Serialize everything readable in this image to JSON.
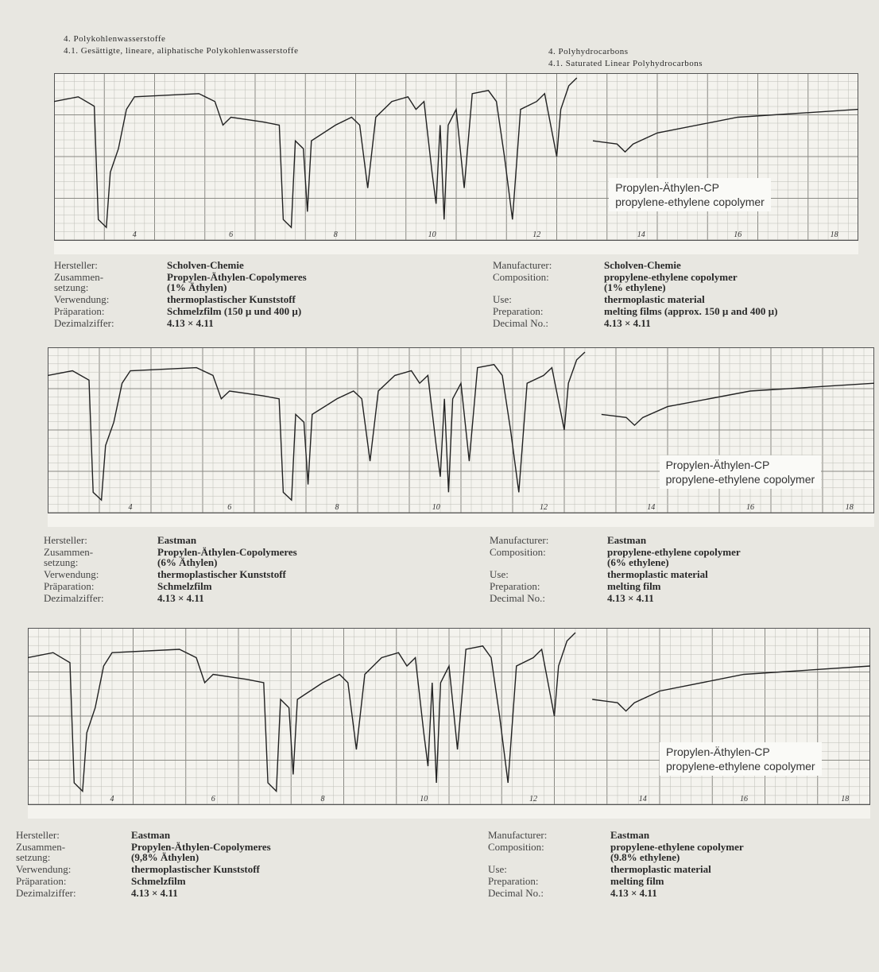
{
  "header": {
    "left_lines": [
      "4. Polykohlenwasserstoffe",
      "4.1. Gesättigte, lineare, aliphatische Polykohlenwasserstoffe"
    ],
    "right_lines": [
      "4. Polyhydrocarbons",
      "4.1. Saturated Linear Polyhydrocarbons"
    ]
  },
  "spectra": [
    {
      "label_lines": [
        "Propylen-Äthylen-CP",
        "propylene-ethylene copolymer"
      ],
      "axis_labels": [
        "4",
        "6",
        "8",
        "10",
        "12",
        "14",
        "16",
        "18"
      ],
      "de": [
        {
          "key": [
            "Hersteller:"
          ],
          "value": [
            "Scholven-Chemie"
          ]
        },
        {
          "key": [
            "Zusammen-",
            "setzung:"
          ],
          "value": [
            "Propylen-Äthylen-Copolymeres",
            "(1% Äthylen)"
          ]
        },
        {
          "key": [
            "Verwendung:"
          ],
          "value": [
            "thermoplastischer Kunststoff"
          ]
        },
        {
          "key": [
            "Präparation:"
          ],
          "value": [
            "Schmelzfilm (150 µ und 400 µ)"
          ]
        },
        {
          "key": [
            "Dezimalziffer:"
          ],
          "value": [
            "4.13 × 4.11"
          ]
        }
      ],
      "en": [
        {
          "key": [
            "Manufacturer:"
          ],
          "value": [
            "Scholven-Chemie"
          ]
        },
        {
          "key": [
            "Composition:"
          ],
          "value": [
            "propylene-ethylene copolymer",
            "(1% ethylene)"
          ]
        },
        {
          "key": [
            "Use:"
          ],
          "value": [
            "thermoplastic material"
          ]
        },
        {
          "key": [
            "Preparation:"
          ],
          "value": [
            "melting films (approx. 150 µ and 400 µ)"
          ]
        },
        {
          "key": [
            "Decimal No.:"
          ],
          "value": [
            "4.13 × 4.11"
          ]
        }
      ]
    },
    {
      "label_lines": [
        "Propylen-Äthylen-CP",
        "propylene-ethylene copolymer"
      ],
      "axis_labels": [
        "4",
        "6",
        "8",
        "10",
        "12",
        "14",
        "16",
        "18"
      ],
      "de": [
        {
          "key": [
            "Hersteller:"
          ],
          "value": [
            "Eastman"
          ]
        },
        {
          "key": [
            "Zusammen-",
            "setzung:"
          ],
          "value": [
            "Propylen-Äthylen-Copolymeres",
            "(6% Äthylen)"
          ]
        },
        {
          "key": [
            "Verwendung:"
          ],
          "value": [
            "thermoplastischer Kunststoff"
          ]
        },
        {
          "key": [
            "Präparation:"
          ],
          "value": [
            "Schmelzfilm"
          ]
        },
        {
          "key": [
            "Dezimalziffer:"
          ],
          "value": [
            "4.13 × 4.11"
          ]
        }
      ],
      "en": [
        {
          "key": [
            "Manufacturer:"
          ],
          "value": [
            "Eastman"
          ]
        },
        {
          "key": [
            "Composition:"
          ],
          "value": [
            "propylene-ethylene copolymer",
            "(6% ethylene)"
          ]
        },
        {
          "key": [
            "Use:"
          ],
          "value": [
            "thermoplastic material"
          ]
        },
        {
          "key": [
            "Preparation:"
          ],
          "value": [
            "melting film"
          ]
        },
        {
          "key": [
            "Decimal No.:"
          ],
          "value": [
            "4.13 × 4.11"
          ]
        }
      ]
    },
    {
      "label_lines": [
        "Propylen-Äthylen-CP",
        "propylene-ethylene copolymer"
      ],
      "axis_labels": [
        "4",
        "6",
        "8",
        "10",
        "12",
        "14",
        "16",
        "18"
      ],
      "de": [
        {
          "key": [
            "Hersteller:"
          ],
          "value": [
            "Eastman"
          ]
        },
        {
          "key": [
            "Zusammen-",
            "setzung:"
          ],
          "value": [
            "Propylen-Äthylen-Copolymeres",
            "(9,8% Äthylen)"
          ]
        },
        {
          "key": [
            "Verwendung:"
          ],
          "value": [
            "thermoplastischer Kunststoff"
          ]
        },
        {
          "key": [
            "Präparation:"
          ],
          "value": [
            "Schmelzfilm"
          ]
        },
        {
          "key": [
            "Dezimalziffer:"
          ],
          "value": [
            "4.13 × 4.11"
          ]
        }
      ],
      "en": [
        {
          "key": [
            "Manufacturer:"
          ],
          "value": [
            "Eastman"
          ]
        },
        {
          "key": [
            "Composition:"
          ],
          "value": [
            "propylene-ethylene copolymer",
            "(9.8% ethylene)"
          ]
        },
        {
          "key": [
            "Use:"
          ],
          "value": [
            "thermoplastic material"
          ]
        },
        {
          "key": [
            "Preparation:"
          ],
          "value": [
            "melting film"
          ]
        },
        {
          "key": [
            "Decimal No.:"
          ],
          "value": [
            "4.13 × 4.11"
          ]
        }
      ]
    }
  ]
}
